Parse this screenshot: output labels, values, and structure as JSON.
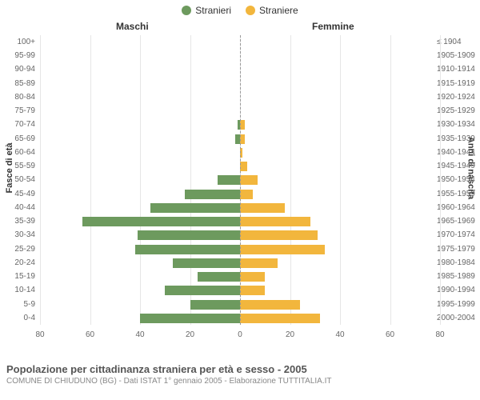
{
  "legend": {
    "male": "Stranieri",
    "female": "Straniere"
  },
  "columns": {
    "male": "Maschi",
    "female": "Femmine"
  },
  "axis_labels": {
    "left": "Fasce di età",
    "right": "Anni di nascita"
  },
  "colors": {
    "male": "#6d9a5e",
    "female": "#f2b63d",
    "grid": "#e6e6e6",
    "center": "#999999",
    "text": "#333333",
    "muted": "#666666",
    "background": "#ffffff"
  },
  "x_axis": {
    "max": 80,
    "ticks": [
      0,
      20,
      40,
      60,
      80
    ]
  },
  "type": "population-pyramid",
  "rows": [
    {
      "age": "100+",
      "birth": "≤ 1904",
      "m": 0,
      "f": 0
    },
    {
      "age": "95-99",
      "birth": "1905-1909",
      "m": 0,
      "f": 0
    },
    {
      "age": "90-94",
      "birth": "1910-1914",
      "m": 0,
      "f": 0
    },
    {
      "age": "85-89",
      "birth": "1915-1919",
      "m": 0,
      "f": 0
    },
    {
      "age": "80-84",
      "birth": "1920-1924",
      "m": 0,
      "f": 0
    },
    {
      "age": "75-79",
      "birth": "1925-1929",
      "m": 0,
      "f": 0
    },
    {
      "age": "70-74",
      "birth": "1930-1934",
      "m": 1,
      "f": 2
    },
    {
      "age": "65-69",
      "birth": "1935-1939",
      "m": 2,
      "f": 2
    },
    {
      "age": "60-64",
      "birth": "1940-1944",
      "m": 0,
      "f": 1
    },
    {
      "age": "55-59",
      "birth": "1945-1949",
      "m": 0,
      "f": 3
    },
    {
      "age": "50-54",
      "birth": "1950-1954",
      "m": 9,
      "f": 7
    },
    {
      "age": "45-49",
      "birth": "1955-1959",
      "m": 22,
      "f": 5
    },
    {
      "age": "40-44",
      "birth": "1960-1964",
      "m": 36,
      "f": 18
    },
    {
      "age": "35-39",
      "birth": "1965-1969",
      "m": 63,
      "f": 28
    },
    {
      "age": "30-34",
      "birth": "1970-1974",
      "m": 41,
      "f": 31
    },
    {
      "age": "25-29",
      "birth": "1975-1979",
      "m": 42,
      "f": 34
    },
    {
      "age": "20-24",
      "birth": "1980-1984",
      "m": 27,
      "f": 15
    },
    {
      "age": "15-19",
      "birth": "1985-1989",
      "m": 17,
      "f": 10
    },
    {
      "age": "10-14",
      "birth": "1990-1994",
      "m": 30,
      "f": 10
    },
    {
      "age": "5-9",
      "birth": "1995-1999",
      "m": 20,
      "f": 24
    },
    {
      "age": "0-4",
      "birth": "2000-2004",
      "m": 40,
      "f": 32
    }
  ],
  "caption": {
    "title": "Popolazione per cittadinanza straniera per età e sesso - 2005",
    "subtitle": "COMUNE DI CHIUDUNO (BG) - Dati ISTAT 1° gennaio 2005 - Elaborazione TUTTITALIA.IT"
  }
}
